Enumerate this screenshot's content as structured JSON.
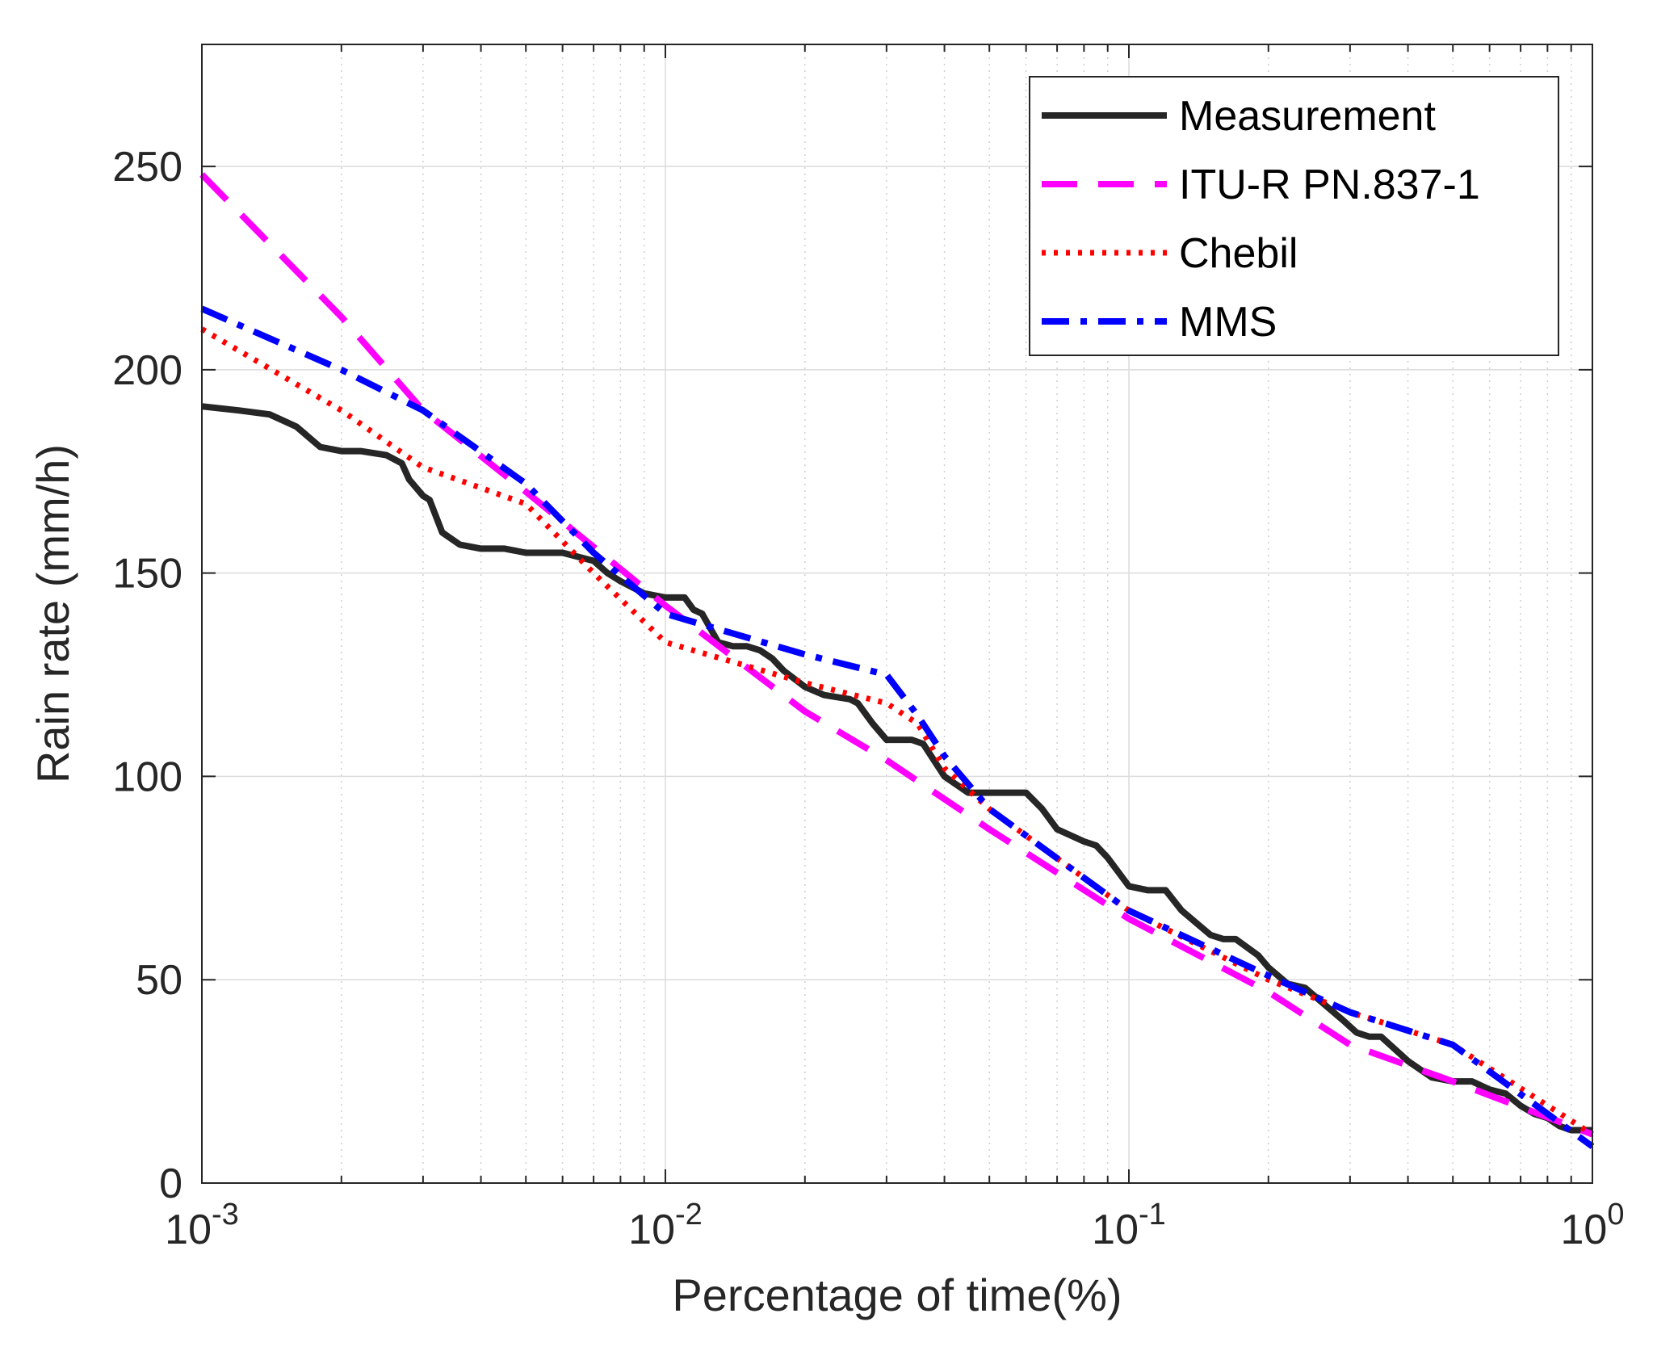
{
  "chart_data": {
    "type": "line",
    "title": "",
    "xlabel": "Percentage of time(%)",
    "ylabel": "Rain rate (mm/h)",
    "xscale": "log",
    "xlim": [
      0.001,
      1
    ],
    "ylim": [
      0,
      280
    ],
    "xticks": [
      {
        "value": 0.001,
        "base": "10",
        "exp": "-3"
      },
      {
        "value": 0.01,
        "base": "10",
        "exp": "-2"
      },
      {
        "value": 0.1,
        "base": "10",
        "exp": "-1"
      },
      {
        "value": 1,
        "base": "10",
        "exp": "0"
      }
    ],
    "yticks": [
      0,
      50,
      100,
      150,
      200,
      250
    ],
    "grid": true,
    "legend_position": "top-right",
    "series": [
      {
        "name": "Measurement",
        "color": "#262626",
        "style": "solid",
        "x": [
          0.001,
          0.0012,
          0.0014,
          0.0016,
          0.0018,
          0.002,
          0.0022,
          0.0025,
          0.0027,
          0.0028,
          0.003,
          0.0031,
          0.0033,
          0.0036,
          0.004,
          0.0045,
          0.005,
          0.006,
          0.007,
          0.0075,
          0.008,
          0.009,
          0.01,
          0.011,
          0.0115,
          0.012,
          0.013,
          0.014,
          0.015,
          0.016,
          0.017,
          0.018,
          0.02,
          0.022,
          0.025,
          0.026,
          0.028,
          0.03,
          0.034,
          0.036,
          0.04,
          0.045,
          0.05,
          0.06,
          0.065,
          0.07,
          0.08,
          0.085,
          0.09,
          0.1,
          0.11,
          0.12,
          0.13,
          0.15,
          0.16,
          0.17,
          0.19,
          0.2,
          0.22,
          0.24,
          0.27,
          0.29,
          0.31,
          0.33,
          0.35,
          0.4,
          0.45,
          0.5,
          0.55,
          0.6,
          0.65,
          0.7,
          0.75,
          0.8,
          0.85,
          0.9,
          1.0
        ],
        "y": [
          191,
          190,
          189,
          186,
          181,
          180,
          180,
          179,
          177,
          173,
          169,
          168,
          160,
          157,
          156,
          156,
          155,
          155,
          153,
          150,
          148,
          145,
          144,
          144,
          141,
          140,
          133,
          132,
          132,
          131,
          129,
          126,
          122,
          120,
          119,
          118,
          113,
          109,
          109,
          108,
          100,
          96,
          96,
          96,
          92,
          87,
          84,
          83,
          80,
          73,
          72,
          72,
          67,
          61,
          60,
          60,
          56,
          53,
          49,
          48,
          43,
          40,
          37,
          36,
          36,
          30,
          26,
          25,
          25,
          23,
          22,
          19,
          17,
          16,
          14,
          13,
          13
        ]
      },
      {
        "name": "ITU-R PN.837-1",
        "color": "#ff00ff",
        "style": "dashed",
        "x": [
          0.001,
          0.002,
          0.003,
          0.005,
          0.01,
          0.02,
          0.03,
          0.05,
          0.1,
          0.2,
          0.3,
          0.5,
          1.0
        ],
        "y": [
          248,
          213,
          190,
          170,
          142,
          116,
          104,
          87,
          65,
          47,
          34,
          25,
          12
        ]
      },
      {
        "name": "Chebil",
        "color": "#ff0000",
        "style": "dotted",
        "x": [
          0.001,
          0.002,
          0.003,
          0.005,
          0.007,
          0.01,
          0.02,
          0.03,
          0.035,
          0.04,
          0.05,
          0.1,
          0.2,
          0.3,
          0.5,
          1.0
        ],
        "y": [
          210,
          190,
          176,
          167,
          150,
          133,
          123,
          118,
          113,
          102,
          92,
          67,
          50,
          42,
          34,
          12
        ]
      },
      {
        "name": "MMS",
        "color": "#0000ff",
        "style": "dashdot",
        "x": [
          0.001,
          0.002,
          0.003,
          0.005,
          0.007,
          0.01,
          0.02,
          0.03,
          0.035,
          0.04,
          0.05,
          0.1,
          0.2,
          0.3,
          0.5,
          1.0
        ],
        "y": [
          215,
          200,
          190,
          172,
          155,
          140,
          130,
          125,
          115,
          105,
          92,
          67,
          51,
          42,
          34,
          9
        ]
      }
    ]
  }
}
